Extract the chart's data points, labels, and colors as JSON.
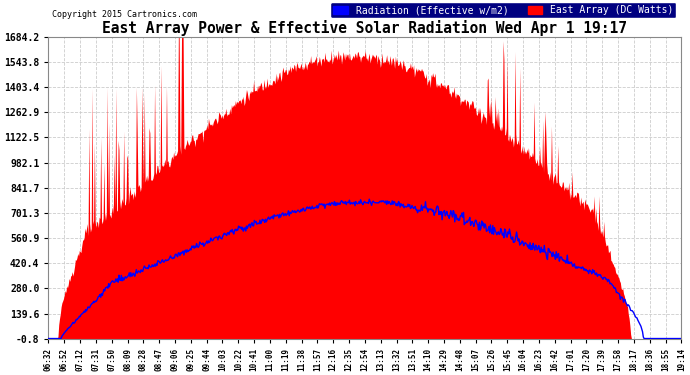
{
  "title": "East Array Power & Effective Solar Radiation Wed Apr 1 19:17",
  "copyright": "Copyright 2015 Cartronics.com",
  "legend_radiation": "Radiation (Effective w/m2)",
  "legend_east": "East Array (DC Watts)",
  "y_ticks": [
    -0.8,
    139.6,
    280.0,
    420.4,
    560.9,
    701.3,
    841.7,
    982.1,
    1122.5,
    1262.9,
    1403.4,
    1543.8,
    1684.2
  ],
  "y_min": -0.8,
  "y_max": 1684.2,
  "bg_color": "#ffffff",
  "plot_bg": "#ffffff",
  "grid_color": "#aaaaaa",
  "red_color": "#ff0000",
  "blue_color": "#0000ff",
  "title_color": "#000000",
  "tick_label_color": "#000000",
  "x_labels": [
    "06:32",
    "06:52",
    "07:12",
    "07:31",
    "07:50",
    "08:09",
    "08:28",
    "08:47",
    "09:06",
    "09:25",
    "09:44",
    "10:03",
    "10:22",
    "10:41",
    "11:00",
    "11:19",
    "11:38",
    "11:57",
    "12:16",
    "12:35",
    "12:54",
    "13:13",
    "13:32",
    "13:51",
    "14:10",
    "14:29",
    "14:48",
    "15:07",
    "15:26",
    "15:45",
    "16:04",
    "16:23",
    "16:42",
    "17:01",
    "17:20",
    "17:39",
    "17:58",
    "18:17",
    "18:36",
    "18:55",
    "19:14"
  ],
  "n_points": 800
}
